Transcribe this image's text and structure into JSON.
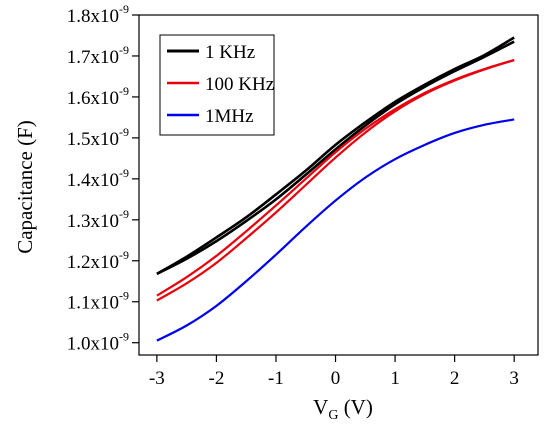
{
  "chart_data": {
    "type": "line",
    "xlabel": {
      "main": "V",
      "sub": "G",
      "unit": " (V)"
    },
    "ylabel": "Capacitance (F)",
    "xlim": [
      -3.3,
      3.4
    ],
    "ylim": [
      9.7e-10,
      1.8e-09
    ],
    "x_ticks": [
      {
        "value": -3,
        "label": "-3"
      },
      {
        "value": -2,
        "label": "-2"
      },
      {
        "value": -1,
        "label": "-1"
      },
      {
        "value": 0,
        "label": "0"
      },
      {
        "value": 1,
        "label": "1"
      },
      {
        "value": 2,
        "label": "2"
      },
      {
        "value": 3,
        "label": "3"
      }
    ],
    "y_ticks": [
      {
        "value": 1e-09,
        "mant": "1.0x10",
        "exp": "-9"
      },
      {
        "value": 1.1e-09,
        "mant": "1.1x10",
        "exp": "-9"
      },
      {
        "value": 1.2e-09,
        "mant": "1.2x10",
        "exp": "-9"
      },
      {
        "value": 1.3e-09,
        "mant": "1.3x10",
        "exp": "-9"
      },
      {
        "value": 1.4e-09,
        "mant": "1.4x10",
        "exp": "-9"
      },
      {
        "value": 1.5e-09,
        "mant": "1.5x10",
        "exp": "-9"
      },
      {
        "value": 1.6e-09,
        "mant": "1.6x10",
        "exp": "-9"
      },
      {
        "value": 1.7e-09,
        "mant": "1.7x10",
        "exp": "-9"
      },
      {
        "value": 1.8e-09,
        "mant": "1.8x10",
        "exp": "-9"
      }
    ],
    "grid": false,
    "legend_position": "top-left",
    "series": [
      {
        "name": "1 KHz",
        "color": "#000000",
        "sweeps": [
          {
            "x": [
              -3.0,
              -2.5,
              -2.0,
              -1.5,
              -1.0,
              -0.5,
              0.0,
              0.5,
              1.0,
              1.5,
              2.0,
              2.5,
              3.0
            ],
            "y": [
              1.168e-09,
              1.205e-09,
              1.248e-09,
              1.297e-09,
              1.35e-09,
              1.41e-09,
              1.472e-09,
              1.53e-09,
              1.582e-09,
              1.625e-09,
              1.663e-09,
              1.698e-09,
              1.735e-09
            ]
          },
          {
            "x": [
              -3.0,
              -2.5,
              -2.0,
              -1.5,
              -1.0,
              -0.5,
              0.0,
              0.5,
              1.0,
              1.5,
              2.0,
              2.5,
              3.0
            ],
            "y": [
              1.168e-09,
              1.21e-09,
              1.257e-09,
              1.306e-09,
              1.362e-09,
              1.42e-09,
              1.483e-09,
              1.538e-09,
              1.588e-09,
              1.63e-09,
              1.668e-09,
              1.702e-09,
              1.745e-09
            ]
          }
        ]
      },
      {
        "name": "100 KHz",
        "color": "#e8000b",
        "sweeps": [
          {
            "x": [
              -3.0,
              -2.5,
              -2.0,
              -1.5,
              -1.0,
              -0.5,
              0.0,
              0.5,
              1.0,
              1.5,
              2.0,
              2.5,
              3.0
            ],
            "y": [
              1.103e-09,
              1.145e-09,
              1.195e-09,
              1.255e-09,
              1.318e-09,
              1.385e-09,
              1.452e-09,
              1.513e-09,
              1.565e-09,
              1.607e-09,
              1.64e-09,
              1.667e-09,
              1.69e-09
            ]
          },
          {
            "x": [
              -3.0,
              -2.5,
              -2.0,
              -1.5,
              -1.0,
              -0.5,
              0.0,
              0.5,
              1.0,
              1.5,
              2.0,
              2.5,
              3.0
            ],
            "y": [
              1.115e-09,
              1.16e-09,
              1.212e-09,
              1.272e-09,
              1.335e-09,
              1.4e-09,
              1.465e-09,
              1.522e-09,
              1.57e-09,
              1.61e-09,
              1.642e-09,
              1.668e-09,
              1.69e-09
            ]
          }
        ]
      },
      {
        "name": "1MHz",
        "color": "#0000ee",
        "sweeps": [
          {
            "x": [
              -3.0,
              -2.5,
              -2.0,
              -1.5,
              -1.0,
              -0.5,
              0.0,
              0.5,
              1.0,
              1.5,
              2.0,
              2.5,
              3.0
            ],
            "y": [
              1.005e-09,
              1.042e-09,
              1.09e-09,
              1.15e-09,
              1.215e-09,
              1.283e-09,
              1.347e-09,
              1.403e-09,
              1.448e-09,
              1.483e-09,
              1.512e-09,
              1.532e-09,
              1.545e-09
            ]
          }
        ]
      }
    ]
  }
}
